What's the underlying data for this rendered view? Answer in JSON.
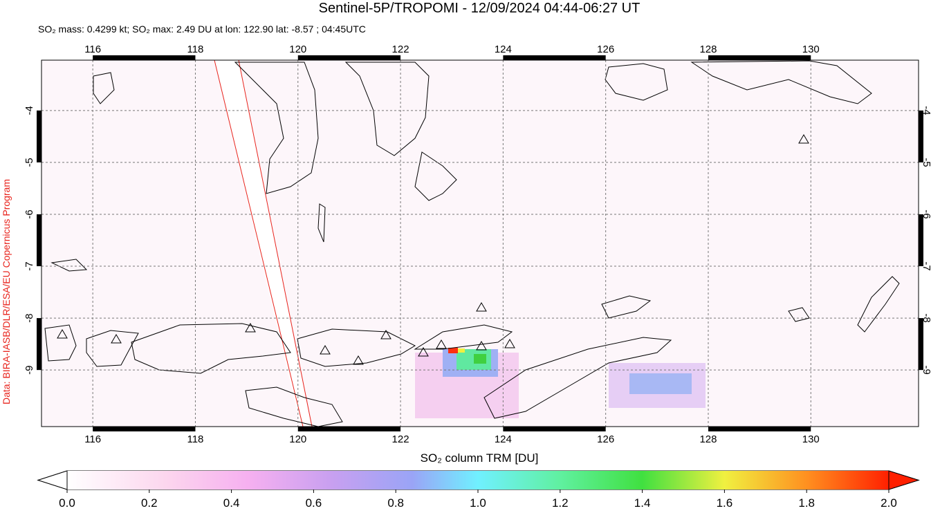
{
  "title": "Sentinel-5P/TROPOMI - 12/09/2024 04:44-06:27 UT",
  "info": "SO₂ mass: 0.4299 kt; SO₂ max: 2.49 DU at lon: 122.90 lat: -8.57 ; 04:45UTC",
  "credit": "Data: BIRA-IASB/DLR/ESA/EU Copernicus Program",
  "map": {
    "lonlim": [
      115,
      132.1
    ],
    "latlim": [
      -10.09,
      -3.03
    ],
    "lon_ticks": [
      116,
      118,
      120,
      122,
      124,
      126,
      128,
      130
    ],
    "lat_ticks": [
      -4,
      -5,
      -6,
      -7,
      -8,
      -9
    ]
  },
  "colorbar": {
    "label": "SO₂ column TRM [DU]",
    "range": [
      0,
      2
    ],
    "ticks": [
      {
        "value": 0,
        "label": "0.0"
      },
      {
        "value": 0.2,
        "label": "0.2"
      },
      {
        "value": 0.4,
        "label": "0.4"
      },
      {
        "value": 0.6,
        "label": "0.6"
      },
      {
        "value": 0.8,
        "label": "0.8"
      },
      {
        "value": 1,
        "label": "1.0"
      },
      {
        "value": 1.2,
        "label": "1.2"
      },
      {
        "value": 1.4,
        "label": "1.4"
      },
      {
        "value": 1.6,
        "label": "1.6"
      },
      {
        "value": 1.8,
        "label": "1.8"
      },
      {
        "value": 2,
        "label": "2.0"
      }
    ]
  }
}
